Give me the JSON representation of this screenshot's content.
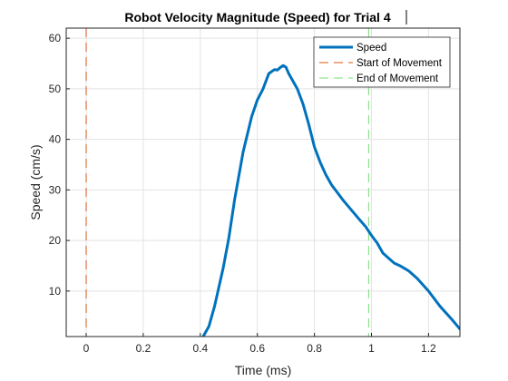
{
  "chart_data": {
    "type": "line",
    "title": "Robot Velocity Magnitude (Speed) for Trial 4",
    "xlabel": "Time (ms)",
    "ylabel": "Speed (cm/s)",
    "xlim": [
      -0.07,
      1.31
    ],
    "ylim": [
      1,
      62
    ],
    "xticks": [
      0,
      0.2,
      0.4,
      0.6,
      0.8,
      1,
      1.2
    ],
    "xtick_labels": [
      "0",
      "0.2",
      "0.4",
      "0.6",
      "0.8",
      "1",
      "1.2"
    ],
    "yticks": [
      10,
      20,
      30,
      40,
      50,
      60
    ],
    "ytick_labels": [
      "10",
      "20",
      "30",
      "40",
      "50",
      "60"
    ],
    "grid": true,
    "legend_position": "top-right",
    "colors": {
      "speed": "#0072BD",
      "start": "#D95319",
      "end": "#77DD77"
    },
    "series": [
      {
        "name": "Speed",
        "x": [
          0.41,
          0.43,
          0.45,
          0.48,
          0.5,
          0.52,
          0.55,
          0.58,
          0.6,
          0.62,
          0.63,
          0.64,
          0.66,
          0.67,
          0.68,
          0.69,
          0.7,
          0.71,
          0.72,
          0.74,
          0.76,
          0.78,
          0.8,
          0.82,
          0.84,
          0.86,
          0.88,
          0.9,
          0.93,
          0.96,
          0.98,
          1.0,
          1.02,
          1.04,
          1.06,
          1.08,
          1.1,
          1.13,
          1.16,
          1.2,
          1.24,
          1.28,
          1.31
        ],
        "y": [
          1,
          3,
          7,
          14.5,
          20.5,
          28,
          37.5,
          44.5,
          47.8,
          50,
          51.5,
          53,
          53.8,
          53.7,
          54.2,
          54.6,
          54.3,
          53,
          52,
          50,
          47,
          43,
          38.5,
          35.5,
          33,
          31,
          29.5,
          28,
          26,
          24,
          22.7,
          21,
          19.5,
          17.5,
          16.5,
          15.5,
          15,
          14,
          12.5,
          10,
          7,
          4.5,
          2.5
        ]
      },
      {
        "name": "Start of Movement",
        "x": 0
      },
      {
        "name": "End of Movement",
        "x": 0.99
      }
    ]
  }
}
